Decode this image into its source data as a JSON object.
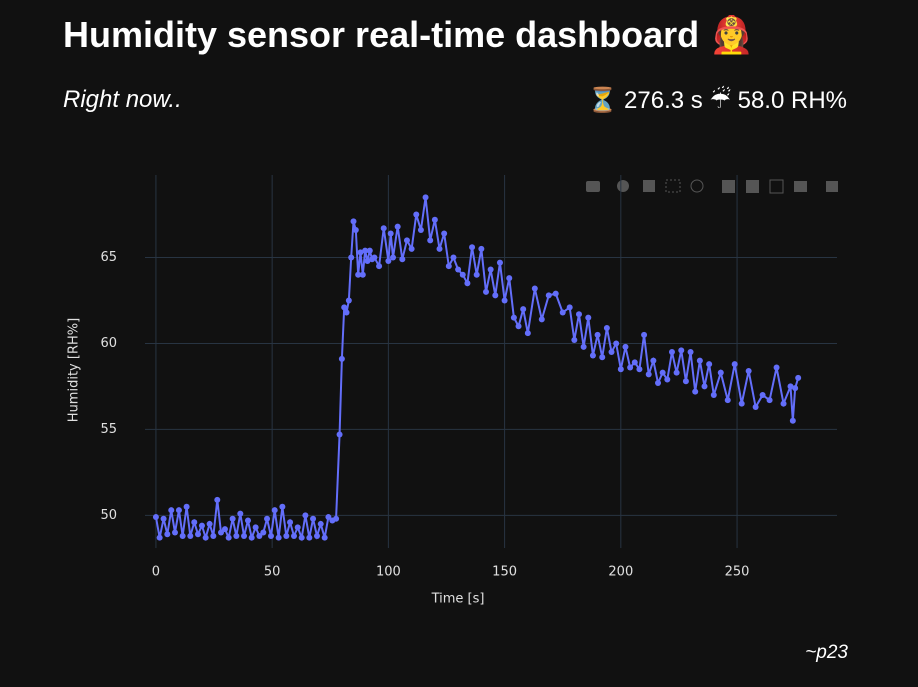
{
  "header": {
    "title": "Humidity sensor real-time dashboard 👩‍🚒",
    "subtitle": "Right now..",
    "time": "⏳ 276.3 s",
    "humidity": "☔ 58.0 RH%"
  },
  "chart_data": {
    "type": "line",
    "x_label": "Time [s]",
    "y_label": "Humidity [RH%]",
    "x": [
      0,
      1.6,
      3.3,
      4.9,
      6.6,
      8.2,
      9.9,
      11.5,
      13.2,
      14.8,
      16.5,
      18.1,
      19.8,
      21.4,
      23.1,
      24.7,
      26.4,
      28,
      29.7,
      31.3,
      33,
      34.6,
      36.3,
      37.9,
      39.6,
      41.2,
      42.9,
      44.5,
      46.2,
      47.8,
      49.5,
      51.1,
      52.8,
      54.4,
      56.1,
      57.7,
      59.4,
      61,
      62.7,
      64.3,
      66,
      67.6,
      69.3,
      70.9,
      72.6,
      74.2,
      75.9,
      77.5,
      79,
      80,
      81,
      82,
      83,
      84,
      85,
      86,
      87,
      88,
      89,
      90,
      91,
      92,
      93,
      94,
      96,
      98,
      100,
      101,
      102,
      104,
      106,
      108,
      110,
      112,
      114,
      116,
      118,
      120,
      122,
      124,
      126,
      128,
      130,
      132,
      134,
      136,
      138,
      140,
      142,
      144,
      146,
      148,
      150,
      152,
      154,
      156,
      158,
      160,
      163,
      166,
      169,
      172,
      175,
      178,
      180,
      182,
      184,
      186,
      188,
      190,
      192,
      194,
      196,
      198,
      200,
      202,
      204,
      206,
      208,
      210,
      212,
      214,
      216,
      218,
      220,
      222,
      224,
      226,
      228,
      230,
      232,
      234,
      236,
      238,
      240,
      243,
      246,
      249,
      252,
      255,
      258,
      261,
      264,
      267,
      270,
      273,
      274,
      275,
      276.3
    ],
    "series": [
      {
        "color": "#636efa",
        "values": [
          49.9,
          48.7,
          49.8,
          48.9,
          50.3,
          49.0,
          50.3,
          48.8,
          50.5,
          48.8,
          49.6,
          48.9,
          49.4,
          48.7,
          49.5,
          48.8,
          50.9,
          49.0,
          49.2,
          48.7,
          49.8,
          48.8,
          50.1,
          48.8,
          49.7,
          48.7,
          49.3,
          48.8,
          49.0,
          49.8,
          48.8,
          50.3,
          48.7,
          50.5,
          48.8,
          49.6,
          48.8,
          49.3,
          48.7,
          50.0,
          48.7,
          49.8,
          48.8,
          49.5,
          48.7,
          49.9,
          49.7,
          49.8,
          54.7,
          59.1,
          62.1,
          61.8,
          62.5,
          65,
          67.1,
          66.6,
          64,
          65.3,
          64,
          65.4,
          64.8,
          65.4,
          64.9,
          65,
          64.5,
          66.7,
          64.8,
          66.4,
          65,
          66.8,
          64.9,
          66,
          65.5,
          67.5,
          66.6,
          68.5,
          66,
          67.2,
          65.5,
          66.4,
          64.5,
          65,
          64.3,
          64,
          63.5,
          65.6,
          64,
          65.5,
          63,
          64.3,
          62.8,
          64.7,
          62.5,
          63.8,
          61.5,
          61,
          62,
          60.6,
          63.2,
          61.4,
          62.8,
          62.9,
          61.8,
          62.1,
          60.2,
          61.7,
          59.8,
          61.5,
          59.3,
          60.5,
          59.2,
          60.9,
          59.5,
          60,
          58.5,
          59.8,
          58.6,
          58.9,
          58.5,
          60.5,
          58.2,
          59,
          57.7,
          58.3,
          57.9,
          59.5,
          58.3,
          59.6,
          57.8,
          59.5,
          57.2,
          59,
          57.5,
          58.8,
          57,
          58.3,
          56.7,
          58.8,
          56.5,
          58.4,
          56.3,
          57,
          56.7,
          58.6,
          56.5,
          57.5,
          55.5,
          57.4,
          58.0
        ]
      }
    ],
    "xlim": [
      -4.7,
      293
    ],
    "ylim": [
      48.1,
      69.8
    ],
    "xticks": [
      0,
      50,
      100,
      150,
      200,
      250
    ],
    "yticks": [
      50,
      55,
      60,
      65
    ],
    "grid": true
  },
  "footer": {
    "signature": "~p23"
  }
}
